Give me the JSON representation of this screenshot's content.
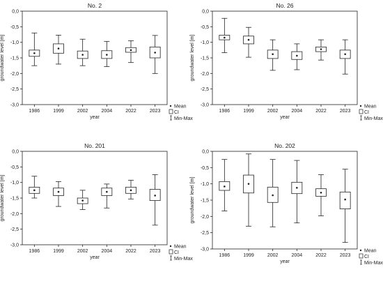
{
  "legend": {
    "mean_label": "Mean",
    "ci_label": "CI",
    "minmax_label": "Min-Max"
  },
  "chart_data": [
    {
      "type": "box",
      "title": "No. 2",
      "xlabel": "year",
      "ylabel": "groundwater level [m]",
      "ylim": [
        -3.0,
        0.0
      ],
      "yticks": [
        "0,0",
        "-0,5",
        "-1,0",
        "-1,5",
        "-2,0",
        "-2,5",
        "-3,0"
      ],
      "categories": [
        "1986",
        "1999",
        "2002",
        "2004",
        "2022",
        "2023"
      ],
      "mean": [
        -1.35,
        -1.2,
        -1.4,
        -1.4,
        -1.25,
        -1.33
      ],
      "ci_low": [
        -1.45,
        -1.35,
        -1.52,
        -1.52,
        -1.32,
        -1.5
      ],
      "ci_high": [
        -1.25,
        -1.05,
        -1.28,
        -1.27,
        -1.17,
        -1.15
      ],
      "min": [
        -1.75,
        -1.7,
        -1.75,
        -1.78,
        -1.65,
        -2.0
      ],
      "max": [
        -0.7,
        -0.77,
        -0.9,
        -0.97,
        -0.95,
        -0.78
      ],
      "legend_position": "right"
    },
    {
      "type": "box",
      "title": "No. 26",
      "xlabel": "year",
      "ylabel": "groundwater level [m]",
      "ylim": [
        -3.0,
        0.0
      ],
      "yticks": [
        "0,0",
        "-0,5",
        "-1,0",
        "-1,5",
        "-2,0",
        "-2,5",
        "-3,0"
      ],
      "categories": [
        "1986",
        "1999",
        "2002",
        "2004",
        "2022",
        "2023"
      ],
      "mean": [
        -0.85,
        -0.92,
        -1.38,
        -1.43,
        -1.22,
        -1.38
      ],
      "ci_low": [
        -0.92,
        -1.05,
        -1.52,
        -1.55,
        -1.3,
        -1.52
      ],
      "ci_high": [
        -0.77,
        -0.8,
        -1.25,
        -1.3,
        -1.15,
        -1.25
      ],
      "min": [
        -1.33,
        -1.48,
        -1.9,
        -1.88,
        -1.57,
        -2.02
      ],
      "max": [
        -0.23,
        -0.52,
        -0.92,
        -1.05,
        -0.92,
        -0.92
      ],
      "legend_position": "right"
    },
    {
      "type": "box",
      "title": "No. 201",
      "xlabel": "year",
      "ylabel": "groundwater level [m]",
      "ylim": [
        -3.0,
        0.0
      ],
      "yticks": [
        "0,0",
        "-0,5",
        "-1,0",
        "-1,5",
        "-2,0",
        "-2,5",
        "-3,0"
      ],
      "categories": [
        "1986",
        "1999",
        "2002",
        "2004",
        "2022",
        "2023"
      ],
      "mean": [
        -1.25,
        -1.3,
        -1.58,
        -1.3,
        -1.25,
        -1.42
      ],
      "ci_low": [
        -1.35,
        -1.42,
        -1.68,
        -1.42,
        -1.35,
        -1.58
      ],
      "ci_high": [
        -1.15,
        -1.18,
        -1.5,
        -1.18,
        -1.15,
        -1.22
      ],
      "min": [
        -1.5,
        -1.77,
        -1.87,
        -1.82,
        -1.53,
        -2.37
      ],
      "max": [
        -0.8,
        -0.97,
        -1.25,
        -1.05,
        -0.93,
        -0.75
      ],
      "legend_position": "right"
    },
    {
      "type": "box",
      "title": "No. 202",
      "xlabel": "year",
      "ylabel": "groundwater level [m]",
      "ylim": [
        -3.0,
        0.0
      ],
      "yticks": [
        "0,0",
        "-0,5",
        "-1,0",
        "-1,5",
        "-2,0",
        "-2,5",
        "-3,0"
      ],
      "categories": [
        "1986",
        "1999",
        "2002",
        "2004",
        "2022",
        "2023"
      ],
      "mean": [
        -1.08,
        -1.0,
        -1.35,
        -1.12,
        -1.27,
        -1.48
      ],
      "ci_low": [
        -1.2,
        -1.28,
        -1.57,
        -1.3,
        -1.38,
        -1.77
      ],
      "ci_high": [
        -0.93,
        -0.73,
        -1.1,
        -0.95,
        -1.15,
        -1.25
      ],
      "min": [
        -1.83,
        -2.3,
        -2.32,
        -2.2,
        -1.98,
        -2.8
      ],
      "max": [
        -0.25,
        -0.08,
        -0.25,
        -0.28,
        -0.72,
        -0.55
      ],
      "legend_position": "right"
    }
  ]
}
